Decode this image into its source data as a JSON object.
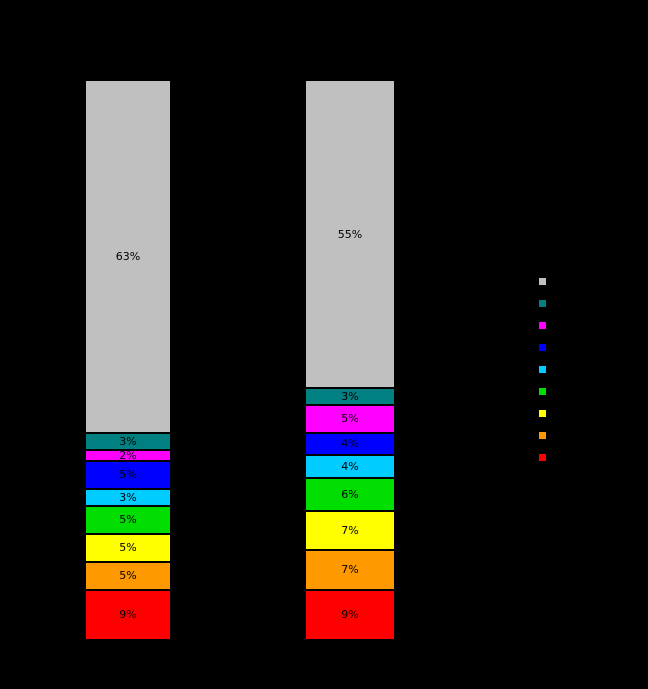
{
  "colors": {
    "background": "#000000",
    "segment_label_text": "#000000"
  },
  "chart_data": {
    "type": "bar",
    "subtype": "100%-stacked-column",
    "title": "",
    "categories": [
      "",
      ""
    ],
    "value_suffix": "%",
    "ylim": [
      0,
      100
    ],
    "grid": false,
    "legend_position": "right",
    "legend_labels_visible": false,
    "stack_order_top_to_bottom": [
      "gray",
      "teal",
      "magenta",
      "blue",
      "cyan",
      "green",
      "yellow",
      "orange",
      "red"
    ],
    "series": [
      {
        "name": "gray",
        "color": "#C0C0C0",
        "values": [
          63,
          55
        ]
      },
      {
        "name": "teal",
        "color": "#008080",
        "values": [
          3,
          3
        ]
      },
      {
        "name": "magenta",
        "color": "#FF00FF",
        "values": [
          2,
          5
        ]
      },
      {
        "name": "blue",
        "color": "#0000FF",
        "values": [
          5,
          4
        ]
      },
      {
        "name": "cyan",
        "color": "#00CCFF",
        "values": [
          3,
          4
        ]
      },
      {
        "name": "green",
        "color": "#00DD00",
        "values": [
          5,
          6
        ]
      },
      {
        "name": "yellow",
        "color": "#FFFF00",
        "values": [
          5,
          7
        ]
      },
      {
        "name": "orange",
        "color": "#FF9900",
        "values": [
          5,
          7
        ]
      },
      {
        "name": "red",
        "color": "#FF0000",
        "values": [
          9,
          9
        ]
      }
    ]
  }
}
